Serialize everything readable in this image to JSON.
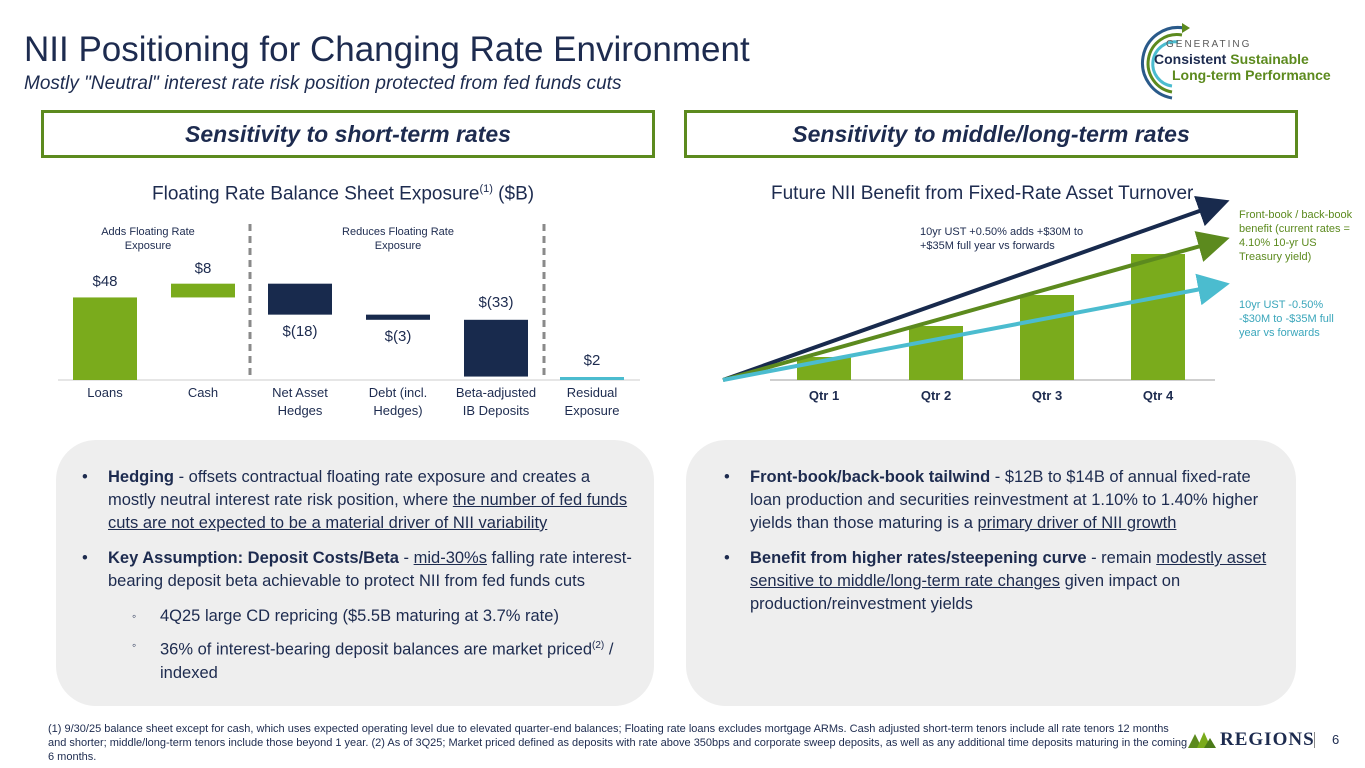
{
  "header": {
    "title": "NII Positioning for Changing Rate Environment",
    "subtitle": "Mostly \"Neutral\" interest rate risk position protected from fed funds cuts"
  },
  "logo": {
    "generating": "GENERATING",
    "consistent": "Consistent",
    "sustainable": "Sustainable",
    "long_term": "Long-term Performance"
  },
  "sections": {
    "left": "Sensitivity to short-term rates",
    "right": "Sensitivity to middle/long-term rates"
  },
  "colors": {
    "green": "#7aab1c",
    "navy": "#182a4d",
    "teal": "#4bbccf",
    "dark_green": "#5c8a1e"
  },
  "chart_data": [
    {
      "type": "bar",
      "title": "Floating Rate Balance Sheet Exposure",
      "title_sup": "(1)",
      "title_unit": "($B)",
      "group_labels": [
        "Adds Floating Rate Exposure",
        "Reduces Floating Rate Exposure"
      ],
      "categories": [
        "Loans",
        "Cash",
        "Net Asset Hedges",
        "Debt (incl. Hedges)",
        "Beta-adjusted IB Deposits",
        "Residual Exposure"
      ],
      "values": [
        48,
        8,
        -18,
        -3,
        -33,
        2
      ],
      "value_labels": [
        "$48",
        "$8",
        "$(18)",
        "$(3)",
        "$(33)",
        "$2"
      ],
      "style": "waterfall"
    },
    {
      "type": "bar",
      "title": "Future NII Benefit from Fixed-Rate Asset Turnover",
      "categories": [
        "Qtr 1",
        "Qtr 2",
        "Qtr 3",
        "Qtr 4"
      ],
      "values": [
        1,
        2,
        3,
        4
      ],
      "lines": [
        {
          "name": "10yr UST +0.50%",
          "color": "#182a4d"
        },
        {
          "name": "Front-book / back-book benefit",
          "color": "#5c8a1e"
        },
        {
          "name": "10yr UST -0.50%",
          "color": "#4bbccf"
        }
      ],
      "annotations": {
        "up": "10yr UST +0.50% adds +$30M to +$35M full year vs forwards",
        "front": "Front-book / back-book benefit (current rates = 4.10% 10-yr US Treasury yield)",
        "down": "10yr UST -0.50% -$30M to -$35M full year vs forwards"
      }
    }
  ],
  "left_panel": {
    "b1_bold": "Hedging",
    "b1_text1": " - offsets contractual floating rate exposure and creates a mostly neutral interest rate risk position, where ",
    "b1_u": "the number of fed funds cuts are not expected to be a material driver of NII variability",
    "b2_bold": "Key Assumption: Deposit Costs/Beta",
    "b2_text1": " - ",
    "b2_u": "mid-30%s",
    "b2_text2": " falling rate interest-bearing deposit beta achievable to protect NII from fed funds cuts",
    "s1": "4Q25 large CD repricing ($5.5B maturing at 3.7% rate)",
    "s2a": "36% of interest-bearing deposit balances are market priced",
    "s2sup": "(2)",
    "s2b": " / indexed"
  },
  "right_panel": {
    "b1_bold": "Front-book/back-book tailwind",
    "b1_text1": " - $12B to $14B of annual fixed-rate loan production and securities reinvestment at 1.10% to 1.40% higher yields than those maturing is a ",
    "b1_u": "primary driver of NII growth",
    "b2_bold": "Benefit from higher rates/steepening curve",
    "b2_text1": " - remain ",
    "b2_u": "modestly asset sensitive to middle/long-term rate changes",
    "b2_text2": " given impact on production/reinvestment yields"
  },
  "footnote": "(1) 9/30/25 balance sheet except for cash, which uses expected operating level due to elevated quarter-end balances; Floating rate loans excludes mortgage ARMs.  Cash adjusted short-term tenors include all rate tenors 12 months and shorter; middle/long-term tenors include those beyond 1 year. (2) As of 3Q25; Market priced defined as deposits with rate above 350bps and corporate sweep deposits, as well as any additional time deposits maturing in the coming 6 months.",
  "brand": {
    "name": "REGIONS",
    "page_number": "6"
  }
}
